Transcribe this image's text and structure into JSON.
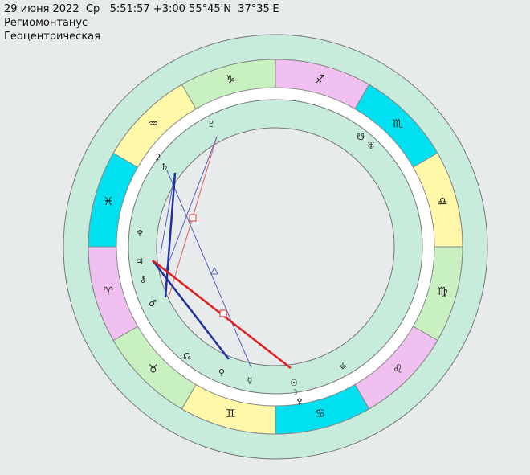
{
  "header": {
    "date_line": "29 июня 2022  Ср   5:51:57 +3:00 55°45'N  37°35'E",
    "house_system": "Региомонтанус",
    "mode": "Геоцентрическая"
  },
  "signs": [
    "♐",
    "♏",
    "♎",
    "♍",
    "♌",
    "♋",
    "♊",
    "♉",
    "♈",
    "♓",
    "♒",
    "♑"
  ],
  "planets": [
    "♇",
    "☋",
    "♅",
    "⚳",
    "♄",
    "♆",
    "♃",
    "⚷",
    "♂",
    "☊",
    "♀",
    "☿",
    "☉",
    "☽",
    "⚴",
    "⚶"
  ]
}
